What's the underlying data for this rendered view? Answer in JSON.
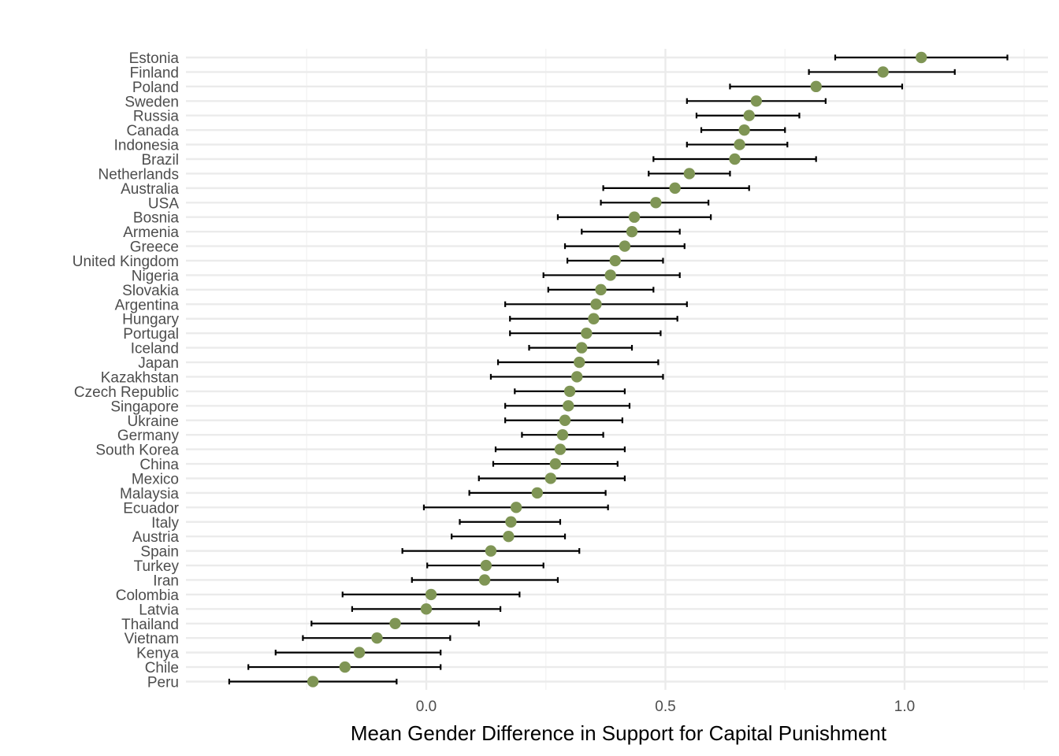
{
  "chart_data": {
    "type": "scatter",
    "subtype": "dot-with-error-bars",
    "title": "",
    "xlabel": "Mean Gender Difference in Support for Capital Punishment",
    "ylabel": "",
    "xlim": [
      -0.51,
      1.3
    ],
    "x_ticks": [
      {
        "value": 0.0,
        "label": "0.0"
      },
      {
        "value": 0.5,
        "label": "0.5"
      },
      {
        "value": 1.0,
        "label": "1.0"
      }
    ],
    "x_minor_ticks": [
      -0.25,
      0.25,
      0.75,
      1.25
    ],
    "grid": true,
    "legend": "none",
    "colors": {
      "point": "#7f9555",
      "errorbar": "#000000",
      "grid_major": "#ebebeb",
      "grid_minor": "#f2f2f2"
    },
    "points": [
      {
        "country": "Estonia",
        "mean": 1.035,
        "low": 0.855,
        "high": 1.215
      },
      {
        "country": "Finland",
        "mean": 0.955,
        "low": 0.8,
        "high": 1.105
      },
      {
        "country": "Poland",
        "mean": 0.815,
        "low": 0.635,
        "high": 0.995
      },
      {
        "country": "Sweden",
        "mean": 0.69,
        "low": 0.545,
        "high": 0.835
      },
      {
        "country": "Russia",
        "mean": 0.675,
        "low": 0.565,
        "high": 0.78
      },
      {
        "country": "Canada",
        "mean": 0.665,
        "low": 0.575,
        "high": 0.75
      },
      {
        "country": "Indonesia",
        "mean": 0.655,
        "low": 0.545,
        "high": 0.755
      },
      {
        "country": "Brazil",
        "mean": 0.645,
        "low": 0.475,
        "high": 0.815
      },
      {
        "country": "Netherlands",
        "mean": 0.55,
        "low": 0.465,
        "high": 0.635
      },
      {
        "country": "Australia",
        "mean": 0.52,
        "low": 0.37,
        "high": 0.675
      },
      {
        "country": "USA",
        "mean": 0.48,
        "low": 0.365,
        "high": 0.59
      },
      {
        "country": "Bosnia",
        "mean": 0.435,
        "low": 0.275,
        "high": 0.595
      },
      {
        "country": "Armenia",
        "mean": 0.43,
        "low": 0.325,
        "high": 0.53
      },
      {
        "country": "Greece",
        "mean": 0.415,
        "low": 0.29,
        "high": 0.54
      },
      {
        "country": "United Kingdom",
        "mean": 0.395,
        "low": 0.295,
        "high": 0.495
      },
      {
        "country": "Nigeria",
        "mean": 0.385,
        "low": 0.245,
        "high": 0.53
      },
      {
        "country": "Slovakia",
        "mean": 0.365,
        "low": 0.255,
        "high": 0.475
      },
      {
        "country": "Argentina",
        "mean": 0.355,
        "low": 0.165,
        "high": 0.545
      },
      {
        "country": "Hungary",
        "mean": 0.35,
        "low": 0.175,
        "high": 0.525
      },
      {
        "country": "Portugal",
        "mean": 0.335,
        "low": 0.175,
        "high": 0.49
      },
      {
        "country": "Iceland",
        "mean": 0.325,
        "low": 0.215,
        "high": 0.43
      },
      {
        "country": "Japan",
        "mean": 0.32,
        "low": 0.15,
        "high": 0.485
      },
      {
        "country": "Kazakhstan",
        "mean": 0.315,
        "low": 0.135,
        "high": 0.495
      },
      {
        "country": "Czech Republic",
        "mean": 0.3,
        "low": 0.185,
        "high": 0.415
      },
      {
        "country": "Singapore",
        "mean": 0.297,
        "low": 0.165,
        "high": 0.425
      },
      {
        "country": "Ukraine",
        "mean": 0.29,
        "low": 0.165,
        "high": 0.41
      },
      {
        "country": "Germany",
        "mean": 0.285,
        "low": 0.2,
        "high": 0.37
      },
      {
        "country": "South Korea",
        "mean": 0.28,
        "low": 0.145,
        "high": 0.415
      },
      {
        "country": "China",
        "mean": 0.27,
        "low": 0.14,
        "high": 0.4
      },
      {
        "country": "Mexico",
        "mean": 0.26,
        "low": 0.11,
        "high": 0.415
      },
      {
        "country": "Malaysia",
        "mean": 0.232,
        "low": 0.09,
        "high": 0.375
      },
      {
        "country": "Ecuador",
        "mean": 0.188,
        "low": -0.005,
        "high": 0.38
      },
      {
        "country": "Italy",
        "mean": 0.177,
        "low": 0.07,
        "high": 0.28
      },
      {
        "country": "Austria",
        "mean": 0.172,
        "low": 0.053,
        "high": 0.29
      },
      {
        "country": "Spain",
        "mean": 0.135,
        "low": -0.05,
        "high": 0.32
      },
      {
        "country": "Turkey",
        "mean": 0.125,
        "low": 0.002,
        "high": 0.245
      },
      {
        "country": "Iran",
        "mean": 0.122,
        "low": -0.03,
        "high": 0.275
      },
      {
        "country": "Colombia",
        "mean": 0.01,
        "low": -0.175,
        "high": 0.195
      },
      {
        "country": "Latvia",
        "mean": 0.0,
        "low": -0.155,
        "high": 0.155
      },
      {
        "country": "Thailand",
        "mean": -0.065,
        "low": -0.24,
        "high": 0.11
      },
      {
        "country": "Vietnam",
        "mean": -0.103,
        "low": -0.258,
        "high": 0.05
      },
      {
        "country": "Kenya",
        "mean": -0.14,
        "low": -0.315,
        "high": 0.03
      },
      {
        "country": "Chile",
        "mean": -0.17,
        "low": -0.372,
        "high": 0.03
      },
      {
        "country": "Peru",
        "mean": -0.237,
        "low": -0.412,
        "high": -0.062
      }
    ]
  }
}
